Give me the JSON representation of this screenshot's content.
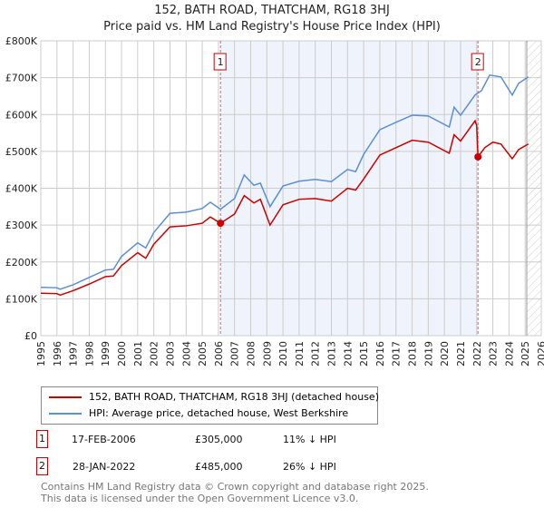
{
  "chart_data": {
    "type": "line",
    "title": "152, BATH ROAD, THATCHAM, RG18 3HJ",
    "subtitle": "Price paid vs. HM Land Registry's House Price Index (HPI)",
    "xlim": [
      1995,
      2026
    ],
    "ylim": [
      0,
      800000
    ],
    "yticks": [
      {
        "v": 0,
        "l": "£0"
      },
      {
        "v": 100000,
        "l": "£100K"
      },
      {
        "v": 200000,
        "l": "£200K"
      },
      {
        "v": 300000,
        "l": "£300K"
      },
      {
        "v": 400000,
        "l": "£400K"
      },
      {
        "v": 500000,
        "l": "£500K"
      },
      {
        "v": 600000,
        "l": "£600K"
      },
      {
        "v": 700000,
        "l": "£700K"
      },
      {
        "v": 800000,
        "l": "£800K"
      }
    ],
    "xticks": [
      "1995",
      "1996",
      "1997",
      "1998",
      "1999",
      "2000",
      "2001",
      "2002",
      "2003",
      "2004",
      "2005",
      "2006",
      "2007",
      "2008",
      "2009",
      "2010",
      "2011",
      "2012",
      "2013",
      "2014",
      "2015",
      "2016",
      "2017",
      "2018",
      "2019",
      "2020",
      "2021",
      "2022",
      "2023",
      "2024",
      "2025",
      "2026"
    ],
    "grid": true,
    "series": [
      {
        "name": "152, BATH ROAD, THATCHAM, RG18 3HJ (detached house)",
        "color": "#cc0000",
        "x": [
          1995,
          1996,
          1996.2,
          1997,
          1998,
          1999,
          1999.5,
          2000,
          2001,
          2001.5,
          2002,
          2003,
          2004,
          2005,
          2005.5,
          2006.13,
          2007,
          2007.6,
          2008.2,
          2008.6,
          2009.2,
          2010,
          2011,
          2012,
          2013,
          2014,
          2014.5,
          2015,
          2016,
          2017,
          2018,
          2019,
          2020.3,
          2020.6,
          2021,
          2021.9,
          2022.0,
          2022.08,
          2022.5,
          2023,
          2023.5,
          2024.2,
          2024.6,
          2025.2
        ],
        "y": [
          115000,
          114000,
          110000,
          122000,
          140000,
          160000,
          162000,
          190000,
          225000,
          210000,
          248000,
          295000,
          298000,
          305000,
          322000,
          305000,
          330000,
          380000,
          360000,
          370000,
          300000,
          355000,
          370000,
          372000,
          365000,
          400000,
          395000,
          425000,
          490000,
          510000,
          530000,
          525000,
          495000,
          545000,
          528000,
          583000,
          570000,
          485000,
          510000,
          525000,
          520000,
          480000,
          505000,
          520000
        ]
      },
      {
        "name": "HPI: Average price, detached house, West Berkshire",
        "color": "#5b8fd6",
        "x": [
          1995,
          1996,
          1996.2,
          1997,
          1998,
          1999,
          1999.5,
          2000,
          2001,
          2001.5,
          2002,
          2003,
          2004,
          2005,
          2005.5,
          2006.13,
          2007,
          2007.6,
          2008.2,
          2008.6,
          2009.2,
          2010,
          2011,
          2012,
          2013,
          2014,
          2014.5,
          2015,
          2016,
          2017,
          2018,
          2019,
          2020.3,
          2020.6,
          2021,
          2021.9,
          2022.3,
          2022.8,
          2023.5,
          2024.2,
          2024.6,
          2025.2
        ],
        "y": [
          131000,
          130000,
          126000,
          138000,
          158000,
          178000,
          180000,
          215000,
          252000,
          238000,
          280000,
          332000,
          335000,
          345000,
          362000,
          343000,
          372000,
          436000,
          408000,
          414000,
          350000,
          406000,
          419000,
          424000,
          418000,
          451000,
          445000,
          492000,
          559000,
          579000,
          598000,
          596000,
          566000,
          620000,
          598000,
          653000,
          665000,
          707000,
          702000,
          653000,
          685000,
          702000
        ]
      }
    ],
    "annotations": [
      {
        "label": "1",
        "x": 2006.13,
        "y": 305000
      },
      {
        "label": "2",
        "x": 2022.08,
        "y": 485000
      }
    ],
    "shaded_range": [
      2006.13,
      2022.08
    ],
    "forecast_hatch_from": 2025.1
  },
  "legend": {
    "items": [
      "152, BATH ROAD, THATCHAM, RG18 3HJ (detached house)",
      "HPI: Average price, detached house, West Berkshire"
    ]
  },
  "transactions": [
    {
      "num": "1",
      "date": "17-FEB-2006",
      "price": "£305,000",
      "hpi": "11% ↓ HPI"
    },
    {
      "num": "2",
      "date": "28-JAN-2022",
      "price": "£485,000",
      "hpi": "26% ↓ HPI"
    }
  ],
  "footer": {
    "line1": "Contains HM Land Registry data © Crown copyright and database right 2025.",
    "line2": "This data is licensed under the Open Government Licence v3.0."
  }
}
